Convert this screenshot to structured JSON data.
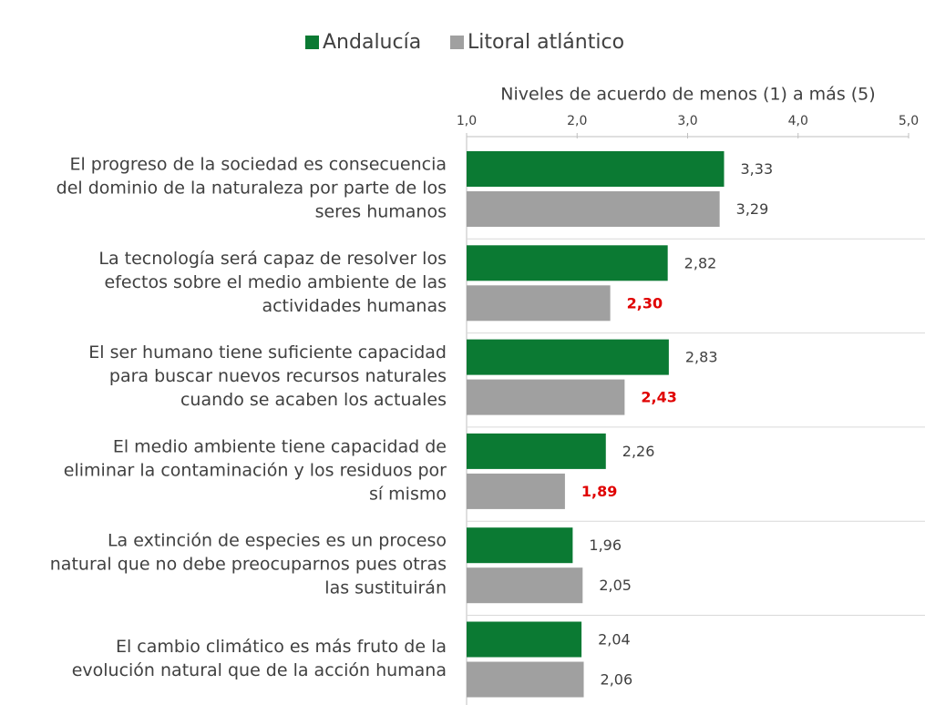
{
  "chart_data": {
    "type": "hbar",
    "x_axis_label": "Niveles de acuerdo de menos (1) a más (5)",
    "categories": [
      [
        "El progreso de la sociedad es consecuencia",
        "del dominio de la naturaleza por parte de los",
        "seres humanos"
      ],
      [
        "La tecnología será capaz de resolver los",
        "efectos sobre el medio ambiente de las",
        "actividades humanas"
      ],
      [
        "El ser humano tiene suficiente capacidad",
        "para buscar nuevos recursos naturales",
        "cuando se acaben los actuales"
      ],
      [
        "El medio ambiente tiene capacidad de",
        "eliminar la contaminación y los residuos por",
        "sí mismo"
      ],
      [
        "La extinción de especies es un proceso",
        "natural que no debe preocuparnos pues otras",
        "las sustituirán"
      ],
      [
        "El cambio climático es más fruto de la",
        "evolución natural que de la acción humana"
      ]
    ],
    "series": [
      {
        "name": "Andalucía",
        "color": "#0b7a33",
        "values": [
          3.33,
          2.82,
          2.83,
          2.26,
          1.96,
          2.04
        ],
        "value_labels": [
          "3,33",
          "2,82",
          "2,83",
          "2,26",
          "1,96",
          "2,04"
        ],
        "value_label_colors": [
          "#404040",
          "#404040",
          "#404040",
          "#404040",
          "#404040",
          "#404040"
        ]
      },
      {
        "name": "Litoral atlántico",
        "color": "#a0a0a0",
        "values": [
          3.29,
          2.3,
          2.43,
          1.89,
          2.05,
          2.06
        ],
        "value_labels": [
          "3,29",
          "2,30",
          "2,43",
          "1,89",
          "2,05",
          "2,06"
        ],
        "value_label_colors": [
          "#404040",
          "#e00000",
          "#e00000",
          "#e00000",
          "#404040",
          "#404040"
        ]
      }
    ],
    "xlim": [
      1,
      5
    ],
    "xticks": [
      {
        "value": 1,
        "label": "1,0"
      },
      {
        "value": 2,
        "label": "2,0"
      },
      {
        "value": 3,
        "label": "3,0"
      },
      {
        "value": 4,
        "label": "4,0"
      },
      {
        "value": 5,
        "label": "5,0"
      }
    ],
    "legend": "top"
  }
}
